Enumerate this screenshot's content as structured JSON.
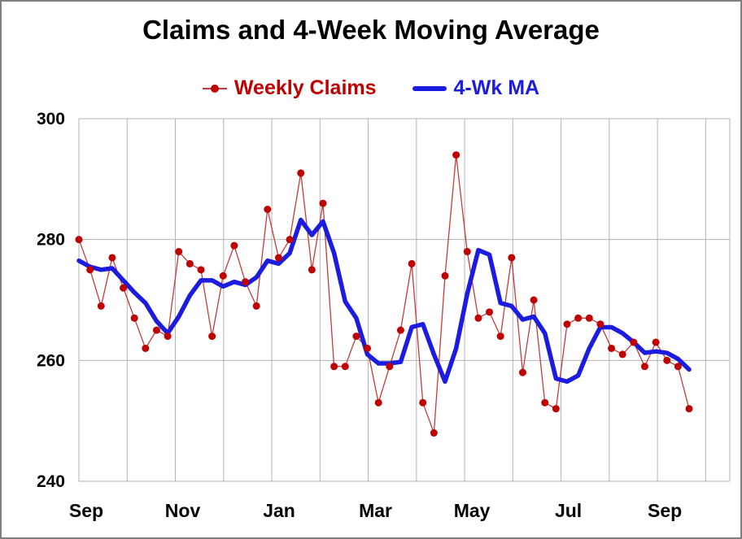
{
  "chart_data": {
    "type": "line",
    "title": "Claims and 4-Week Moving Average",
    "xlabel": "",
    "ylabel": "",
    "ylim": [
      240,
      300
    ],
    "yticks": [
      240,
      260,
      280,
      300
    ],
    "xticklabels": [
      "Sep",
      "Nov",
      "Jan",
      "Mar",
      "May",
      "Jul",
      "Sep"
    ],
    "grid": true,
    "legend_position": "top",
    "colors": {
      "weekly_marker": "#C00000",
      "weekly_line": "#C53B3B",
      "ma_line": "#1C1CE0",
      "gridline": "#B3B3B3",
      "text": "#000000"
    },
    "series": [
      {
        "name": "Weekly Claims",
        "style": "thin-line-with-markers",
        "values": [
          280,
          275,
          269,
          277,
          272,
          267,
          262,
          265,
          264,
          278,
          276,
          275,
          264,
          274,
          279,
          273,
          269,
          285,
          277,
          280,
          291,
          275,
          286,
          259,
          259,
          264,
          262,
          253,
          259,
          265,
          276,
          253,
          248,
          274,
          294,
          278,
          267,
          268,
          264,
          277,
          258,
          270,
          253,
          252,
          266,
          267,
          267,
          266,
          262,
          261,
          263,
          259,
          263,
          260,
          259,
          252
        ]
      },
      {
        "name": "4-Wk MA",
        "style": "thick-line",
        "values": [
          276.5,
          275.5,
          275,
          275.25,
          273.25,
          271.25,
          269.5,
          266.5,
          264.5,
          267.25,
          270.75,
          273.25,
          273.25,
          272.25,
          273,
          272.5,
          273.75,
          276.5,
          276,
          277.75,
          283.25,
          280.75,
          283,
          277.75,
          269.75,
          267,
          261,
          259.5,
          259.5,
          259.75,
          265.5,
          266,
          261,
          256.5,
          262,
          271,
          278.25,
          277.5,
          269.5,
          269,
          266.75,
          267.25,
          264.5,
          257,
          256.5,
          257.5,
          262,
          265.5,
          265.5,
          264.5,
          263,
          261.25,
          261.5,
          261.25,
          260.25,
          258.5
        ]
      }
    ]
  }
}
